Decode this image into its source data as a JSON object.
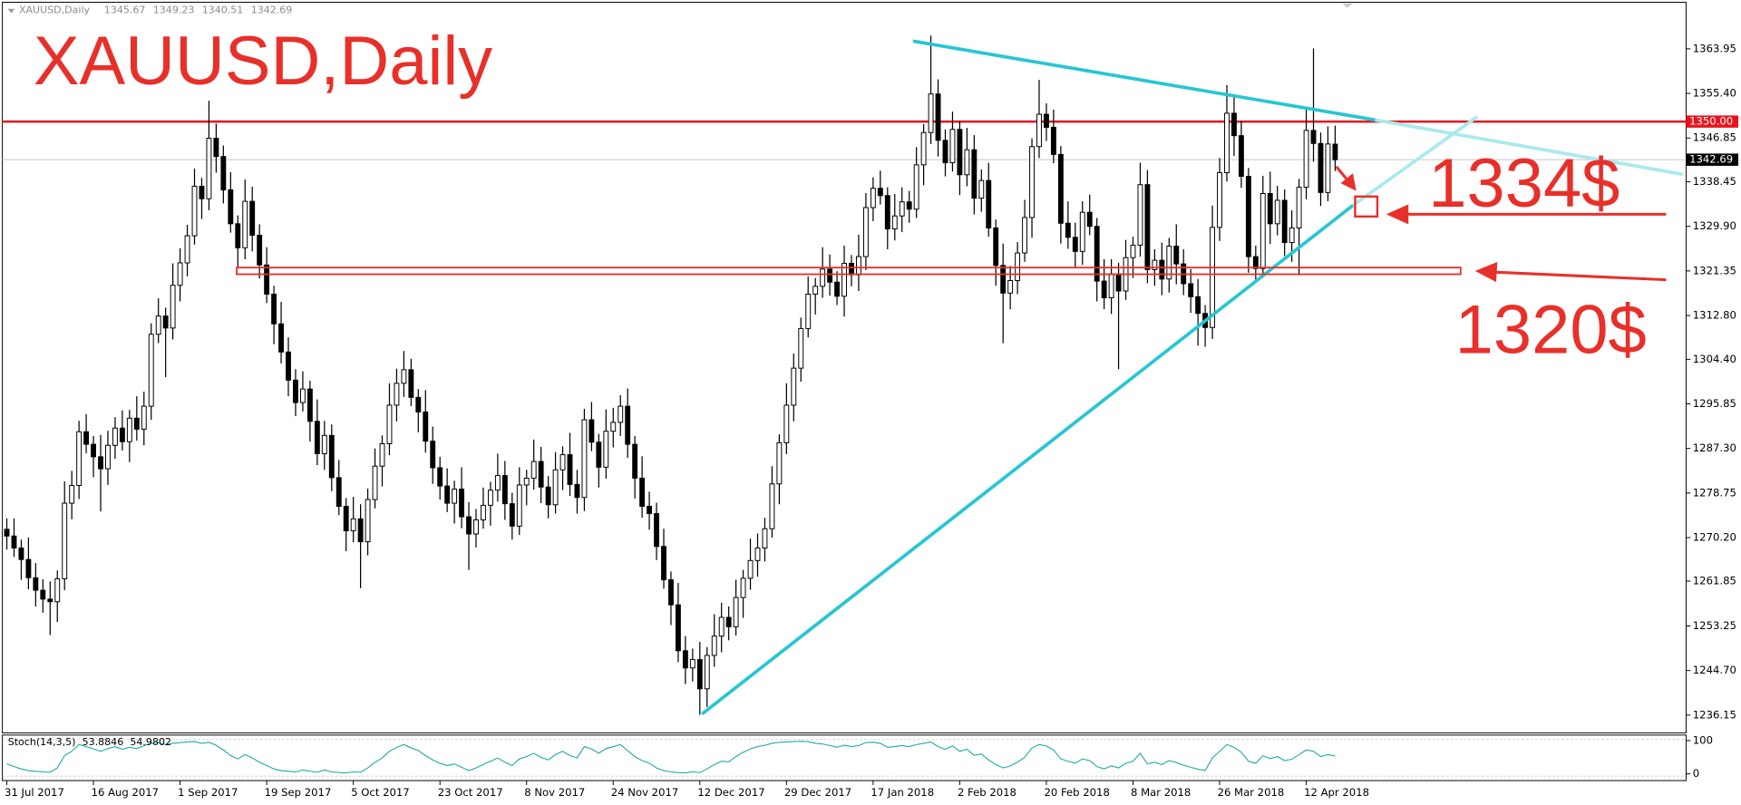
{
  "chart_data": {
    "type": "candlestick",
    "title": "XAUUSD,Daily",
    "annotations": [
      "1334$",
      "1320$"
    ],
    "colors": {
      "up": "#ffffff",
      "down": "#000000",
      "text": "#e8302a",
      "trend": "#27c6d2"
    },
    "categories": [
      "31 Jul 2017",
      null,
      null,
      null,
      null,
      null,
      null,
      null,
      null,
      null,
      null,
      null,
      "16 Aug 2017",
      null,
      null,
      null,
      null,
      null,
      null,
      null,
      null,
      null,
      null,
      null,
      "1 Sep 2017",
      null,
      null,
      null,
      null,
      null,
      null,
      null,
      null,
      null,
      null,
      null,
      "19 Sep 2017",
      null,
      null,
      null,
      null,
      null,
      null,
      null,
      null,
      null,
      null,
      null,
      "5 Oct 2017",
      null,
      null,
      null,
      null,
      null,
      null,
      null,
      null,
      null,
      null,
      null,
      "23 Oct 2017",
      null,
      null,
      null,
      null,
      null,
      null,
      null,
      null,
      null,
      null,
      null,
      "8 Nov 2017",
      null,
      null,
      null,
      null,
      null,
      null,
      null,
      null,
      null,
      null,
      null,
      "24 Nov 2017",
      null,
      null,
      null,
      null,
      null,
      null,
      null,
      null,
      null,
      null,
      null,
      "12 Dec 2017",
      null,
      null,
      null,
      null,
      null,
      null,
      null,
      null,
      null,
      null,
      null,
      "29 Dec 2017",
      null,
      null,
      null,
      null,
      null,
      null,
      null,
      null,
      null,
      null,
      null,
      "17 Jan 2018",
      null,
      null,
      null,
      null,
      null,
      null,
      null,
      null,
      null,
      null,
      null,
      "2 Feb 2018",
      null,
      null,
      null,
      null,
      null,
      null,
      null,
      null,
      null,
      null,
      null,
      "20 Feb 2018",
      null,
      null,
      null,
      null,
      null,
      null,
      null,
      null,
      null,
      null,
      null,
      "8 Mar 2018",
      null,
      null,
      null,
      null,
      null,
      null,
      null,
      null,
      null,
      null,
      null,
      "26 Mar 2018",
      null,
      null,
      null,
      null,
      null,
      null,
      null,
      null,
      null,
      null,
      null,
      "12 Apr 2018",
      null,
      null,
      null,
      null
    ],
    "open": [
      1271.8,
      1270.5,
      1268.2,
      1266.0,
      1262.5,
      1260.1,
      1258.4,
      1257.9,
      1262.3,
      1276.8,
      1280.2,
      1290.5,
      1288.1,
      1285.7,
      1283.4,
      1287.9,
      1291.2,
      1288.6,
      1293.1,
      1291.0,
      1295.4,
      1309.2,
      1312.7,
      1310.4,
      1318.6,
      1322.9,
      1328.1,
      1337.6,
      1335.2,
      1346.8,
      1343.3,
      1336.9,
      1330.4,
      1325.8,
      1334.7,
      1328.2,
      1322.5,
      1316.9,
      1311.2,
      1305.8,
      1300.4,
      1296.1,
      1298.7,
      1292.5,
      1286.3,
      1289.8,
      1281.7,
      1276.2,
      1271.5,
      1273.8,
      1269.4,
      1277.5,
      1283.9,
      1288.2,
      1295.6,
      1299.8,
      1302.4,
      1297.1,
      1294.3,
      1288.7,
      1283.6,
      1280.1,
      1276.8,
      1279.5,
      1274.2,
      1270.9,
      1273.6,
      1276.4,
      1279.3,
      1282.1,
      1276.7,
      1272.4,
      1280.3,
      1281.6,
      1284.8,
      1279.9,
      1276.5,
      1283.2,
      1286.1,
      1280.4,
      1277.9,
      1292.8,
      1288.5,
      1283.7,
      1290.6,
      1292.3,
      1295.4,
      1288.1,
      1281.6,
      1276.2,
      1274.8,
      1268.5,
      1262.1,
      1257.3,
      1248.5,
      1245.2,
      1246.8,
      1241.2,
      1247.6,
      1251.3,
      1254.9,
      1253.1,
      1258.7,
      1262.4,
      1265.8,
      1268.2,
      1271.9,
      1280.5,
      1288.4,
      1295.6,
      1302.7,
      1310.3,
      1316.9,
      1318.4,
      1321.7,
      1319.2,
      1316.5,
      1322.8,
      1320.6,
      1324.1,
      1333.5,
      1337.2,
      1335.8,
      1329.4,
      1331.9,
      1334.6,
      1333.2,
      1341.7,
      1347.9,
      1355.3,
      1346.4,
      1342.1,
      1348.5,
      1339.8,
      1344.6,
      1335.3,
      1338.7,
      1329.6,
      1322.4,
      1317.1,
      1319.5,
      1324.8,
      1331.6,
      1345.2,
      1351.4,
      1348.9,
      1343.7,
      1330.5,
      1327.8,
      1325.1,
      1332.6,
      1329.9,
      1319.4,
      1316.2,
      1320.8,
      1317.5,
      1323.9,
      1326.3,
      1337.9,
      1321.6,
      1323.4,
      1319.8,
      1326.1,
      1322.7,
      1318.9,
      1316.4,
      1313.2,
      1310.5,
      1329.7,
      1340.2,
      1351.6,
      1347.3,
      1339.5,
      1324.1,
      1321.8,
      1336.2,
      1330.4,
      1334.9,
      1326.8,
      1329.6,
      1337.4,
      1348.3,
      1345.8,
      1336.4,
      1345.67
    ],
    "high": [
      1273.9,
      1273.9,
      1269.8,
      1270.2,
      1265.3,
      1262.2,
      1261.8,
      1263.9,
      1281.0,
      1283.0,
      1292.6,
      1293.9,
      1289.7,
      1289.9,
      1290.7,
      1293.3,
      1294.6,
      1294.7,
      1297.3,
      1298.2,
      1311.3,
      1316.1,
      1314.3,
      1322.8,
      1325.7,
      1330.2,
      1341.0,
      1339.2,
      1354.0,
      1349.6,
      1345.4,
      1340.3,
      1332.0,
      1338.9,
      1337.5,
      1330.3,
      1325.9,
      1318.5,
      1315.4,
      1308.6,
      1302.5,
      1302.1,
      1300.3,
      1296.7,
      1292.6,
      1291.9,
      1285.1,
      1277.8,
      1278.0,
      1276.6,
      1279.6,
      1287.3,
      1289.8,
      1299.8,
      1302.6,
      1306.0,
      1304.5,
      1298.7,
      1298.5,
      1291.5,
      1285.7,
      1283.5,
      1281.1,
      1283.7,
      1277.0,
      1275.7,
      1279.8,
      1280.9,
      1286.3,
      1284.9,
      1278.8,
      1283.7,
      1283.2,
      1289.0,
      1287.6,
      1282.0,
      1286.6,
      1287.7,
      1290.3,
      1283.2,
      1294.9,
      1296.2,
      1290.1,
      1294.8,
      1295.1,
      1297.5,
      1298.8,
      1289.7,
      1285.8,
      1279.0,
      1276.9,
      1271.9,
      1263.7,
      1261.5,
      1251.3,
      1248.9,
      1250.2,
      1249.2,
      1255.5,
      1257.7,
      1257.0,
      1262.1,
      1264.0,
      1270.0,
      1271.0,
      1274.0,
      1283.9,
      1290.0,
      1299.8,
      1305.5,
      1312.4,
      1320.3,
      1320.0,
      1325.9,
      1324.5,
      1321.3,
      1326.2,
      1324.4,
      1328.3,
      1336.3,
      1339.3,
      1340.6,
      1337.4,
      1336.1,
      1337.4,
      1336.7,
      1345.1,
      1349.5,
      1366.5,
      1358.1,
      1348.5,
      1351.9,
      1350.1,
      1348.8,
      1347.4,
      1340.8,
      1342.1,
      1331.2,
      1326.6,
      1322.3,
      1326.9,
      1335.0,
      1346.8,
      1358.0,
      1353.5,
      1352.3,
      1345.3,
      1334.7,
      1330.6,
      1334.7,
      1336.0,
      1331.5,
      1323.6,
      1323.6,
      1322.9,
      1327.3,
      1327.9,
      1342.1,
      1340.7,
      1325.5,
      1326.8,
      1327.7,
      1330.3,
      1325.5,
      1321.7,
      1319.8,
      1314.8,
      1333.9,
      1343.0,
      1357.0,
      1354.9,
      1350.1,
      1341.1,
      1326.2,
      1339.6,
      1340.4,
      1337.7,
      1337.0,
      1333.0,
      1339.0,
      1352.5,
      1364.0,
      1347.9,
      1349.1,
      1349.23
    ],
    "low": [
      1267.9,
      1266.5,
      1262.1,
      1260.3,
      1257.0,
      1255.8,
      1251.5,
      1254.0,
      1260.1,
      1273.7,
      1277.6,
      1286.4,
      1281.8,
      1275.2,
      1280.3,
      1285.3,
      1286.9,
      1284.7,
      1288.8,
      1287.9,
      1292.8,
      1307.5,
      1301.0,
      1308.2,
      1315.5,
      1320.3,
      1326.4,
      1331.3,
      1333.0,
      1340.2,
      1334.3,
      1328.7,
      1321.9,
      1323.6,
      1325.1,
      1319.9,
      1315.2,
      1307.3,
      1303.6,
      1297.3,
      1293.5,
      1294.4,
      1288.6,
      1284.1,
      1283.2,
      1279.1,
      1274.5,
      1267.6,
      1269.3,
      1260.5,
      1266.8,
      1275.8,
      1280.0,
      1286.0,
      1292.5,
      1297.2,
      1295.4,
      1290.4,
      1286.5,
      1280.5,
      1277.5,
      1275.1,
      1272.9,
      1272.0,
      1264.0,
      1268.3,
      1271.9,
      1272.5,
      1277.1,
      1273.6,
      1269.8,
      1270.7,
      1276.4,
      1279.4,
      1276.8,
      1273.9,
      1274.8,
      1279.3,
      1278.2,
      1274.8,
      1275.3,
      1286.8,
      1279.8,
      1281.5,
      1287.5,
      1289.7,
      1285.5,
      1277.7,
      1274.0,
      1271.7,
      1265.9,
      1260.4,
      1253.4,
      1246.3,
      1242.1,
      1242.6,
      1236.2,
      1237.7,
      1245.4,
      1248.2,
      1250.5,
      1251.4,
      1254.8,
      1260.2,
      1262.7,
      1265.6,
      1270.2,
      1276.6,
      1286.2,
      1292.5,
      1300.1,
      1308.6,
      1313.0,
      1316.2,
      1316.6,
      1314.8,
      1312.6,
      1318.4,
      1317.5,
      1321.5,
      1330.9,
      1334.1,
      1325.5,
      1327.2,
      1328.8,
      1330.6,
      1331.5,
      1337.8,
      1345.7,
      1343.3,
      1339.5,
      1340.4,
      1335.9,
      1337.6,
      1332.2,
      1332.7,
      1327.9,
      1318.5,
      1307.5,
      1314.0,
      1316.9,
      1323.1,
      1327.7,
      1343.0,
      1346.3,
      1342.0,
      1326.6,
      1325.6,
      1322.0,
      1322.5,
      1328.2,
      1315.5,
      1314.0,
      1313.1,
      1302.5,
      1315.8,
      1320.0,
      1324.1,
      1319.0,
      1318.5,
      1316.7,
      1317.2,
      1318.8,
      1316.7,
      1313.3,
      1307.0,
      1306.8,
      1308.3,
      1327.1,
      1338.5,
      1343.4,
      1337.3,
      1321.0,
      1319.2,
      1320.1,
      1326.5,
      1328.2,
      1324.2,
      1323.1,
      1320.5,
      1335.1,
      1342.3,
      1333.8,
      1334.7,
      1340.51
    ],
    "close": [
      1270.5,
      1268.2,
      1266.0,
      1262.5,
      1260.1,
      1258.4,
      1257.9,
      1262.3,
      1276.8,
      1280.2,
      1290.5,
      1288.1,
      1285.7,
      1283.4,
      1287.9,
      1291.2,
      1288.6,
      1293.1,
      1291.0,
      1295.4,
      1309.2,
      1312.7,
      1310.4,
      1318.6,
      1322.9,
      1328.1,
      1337.6,
      1335.2,
      1346.8,
      1343.3,
      1336.9,
      1330.4,
      1325.8,
      1334.7,
      1328.2,
      1322.5,
      1316.9,
      1311.2,
      1305.8,
      1300.4,
      1296.1,
      1298.7,
      1292.5,
      1286.3,
      1289.8,
      1281.7,
      1276.2,
      1271.5,
      1273.8,
      1269.4,
      1277.5,
      1283.9,
      1288.2,
      1295.6,
      1299.8,
      1302.4,
      1297.1,
      1294.3,
      1288.7,
      1283.6,
      1280.1,
      1276.8,
      1279.5,
      1274.2,
      1270.9,
      1273.6,
      1276.4,
      1279.3,
      1282.1,
      1276.7,
      1272.4,
      1280.3,
      1281.6,
      1284.8,
      1279.9,
      1276.5,
      1283.2,
      1286.1,
      1280.4,
      1277.9,
      1292.8,
      1288.5,
      1283.7,
      1290.6,
      1292.3,
      1295.4,
      1288.1,
      1281.6,
      1276.2,
      1274.8,
      1268.5,
      1262.1,
      1257.3,
      1248.5,
      1245.2,
      1246.8,
      1241.2,
      1247.6,
      1251.3,
      1254.9,
      1253.1,
      1258.7,
      1262.4,
      1265.8,
      1268.2,
      1271.9,
      1280.5,
      1288.4,
      1295.6,
      1302.7,
      1310.3,
      1316.9,
      1318.4,
      1321.7,
      1319.2,
      1316.5,
      1322.8,
      1320.6,
      1324.1,
      1333.5,
      1337.2,
      1335.8,
      1329.4,
      1331.9,
      1334.6,
      1333.2,
      1341.7,
      1347.9,
      1355.3,
      1346.4,
      1342.1,
      1348.5,
      1339.8,
      1344.6,
      1335.3,
      1338.7,
      1329.6,
      1322.4,
      1317.1,
      1319.5,
      1324.8,
      1331.6,
      1345.2,
      1351.4,
      1348.9,
      1343.7,
      1330.5,
      1327.8,
      1325.1,
      1332.6,
      1329.9,
      1319.4,
      1316.2,
      1320.8,
      1317.5,
      1323.9,
      1326.3,
      1337.9,
      1321.6,
      1323.4,
      1319.8,
      1326.1,
      1322.7,
      1318.9,
      1316.4,
      1313.2,
      1310.5,
      1329.7,
      1340.2,
      1351.6,
      1347.3,
      1339.5,
      1324.1,
      1321.8,
      1336.2,
      1330.4,
      1334.9,
      1326.8,
      1329.6,
      1337.4,
      1348.3,
      1345.8,
      1336.4,
      1345.7,
      1342.69
    ],
    "ylim": [
      1232.75,
      1372.47
    ],
    "yticks": [
      1363.95,
      {
        "value": 1355.4,
        "label": "1355.40"
      },
      1346.85,
      1338.45,
      {
        "value": 1329.9,
        "label": "1329.90"
      },
      1321.35,
      {
        "value": 1312.8,
        "label": "1312.80"
      },
      {
        "value": 1304.4,
        "label": "1304.40"
      },
      1295.85,
      {
        "value": 1287.3,
        "label": "1287.30"
      },
      1278.75,
      {
        "value": 1270.2,
        "label": "1270.20"
      },
      1261.85,
      1253.25,
      {
        "value": 1244.7,
        "label": "1244.70"
      },
      1236.15
    ],
    "levels": [
      {
        "value": 1350,
        "label": "1350.00",
        "color": "#e8141c"
      },
      {
        "value": 1342.69,
        "color": "#c8c8c8"
      }
    ],
    "indicator": {
      "type": "line",
      "title": "Stoch(14,3,5)",
      "main_last": 53.8846,
      "signal_last": 54.9802,
      "color": "#1fa9a9",
      "ylim": [
        -20,
        116.7
      ],
      "yticks": [
        100,
        0
      ],
      "values": [
        30,
        22,
        15,
        10,
        8,
        6,
        5,
        18,
        55,
        68,
        88,
        82,
        75,
        68,
        76,
        82,
        74,
        80,
        76,
        85,
        92,
        94,
        88,
        92,
        94,
        96,
        97,
        92,
        95,
        86,
        72,
        55,
        45,
        58,
        48,
        35,
        25,
        15,
        10,
        8,
        6,
        12,
        8,
        5,
        12,
        6,
        4,
        3,
        6,
        5,
        18,
        35,
        48,
        68,
        80,
        88,
        78,
        70,
        55,
        42,
        32,
        25,
        30,
        20,
        10,
        18,
        28,
        38,
        48,
        35,
        25,
        45,
        52,
        62,
        50,
        42,
        58,
        68,
        55,
        48,
        82,
        75,
        62,
        76,
        82,
        88,
        70,
        52,
        40,
        32,
        18,
        10,
        6,
        4,
        3,
        6,
        4,
        15,
        28,
        38,
        36,
        52,
        65,
        75,
        82,
        86,
        92,
        95,
        96,
        97,
        98,
        97,
        92,
        90,
        85,
        80,
        86,
        82,
        85,
        94,
        95,
        92,
        80,
        82,
        85,
        82,
        88,
        92,
        96,
        82,
        74,
        84,
        68,
        74,
        56,
        60,
        42,
        28,
        18,
        24,
        35,
        50,
        78,
        88,
        84,
        72,
        45,
        38,
        32,
        45,
        40,
        22,
        15,
        24,
        18,
        32,
        38,
        62,
        30,
        35,
        28,
        40,
        34,
        26,
        20,
        14,
        10,
        48,
        68,
        88,
        80,
        65,
        38,
        32,
        55,
        46,
        52,
        40,
        44,
        58,
        72,
        68,
        52,
        58,
        53.9
      ]
    }
  }
}
